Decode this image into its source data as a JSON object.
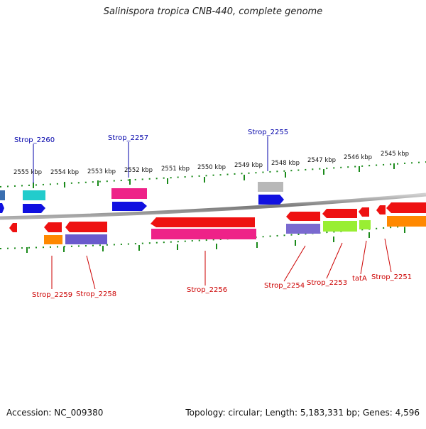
{
  "title": "Salinispora tropica CNB-440, complete genome",
  "accession": "Accession: NC_009380",
  "summary": "Topology: circular; Length: 5,183,331 bp; Genes: 4,596",
  "ruler_ticks": [
    "2555 kbp",
    "2554 kbp",
    "2553 kbp",
    "2552 kbp",
    "2551 kbp",
    "2550 kbp",
    "2549 kbp",
    "2548 kbp",
    "2547 kbp",
    "2546 kbp",
    "2545 kbp"
  ],
  "genes_top": [
    "Strop_2260",
    "Strop_2257",
    "Strop_2255"
  ],
  "genes_bottom": [
    "Strop_2259",
    "Strop_2258",
    "Strop_2256",
    "Strop_2254",
    "Strop_2253",
    "tatA",
    "Strop_2251"
  ],
  "colors": {
    "top_label": "#0000aa",
    "bottom_label": "#cc0000",
    "tick": "#1a8a1a",
    "backbone": "#888888"
  }
}
